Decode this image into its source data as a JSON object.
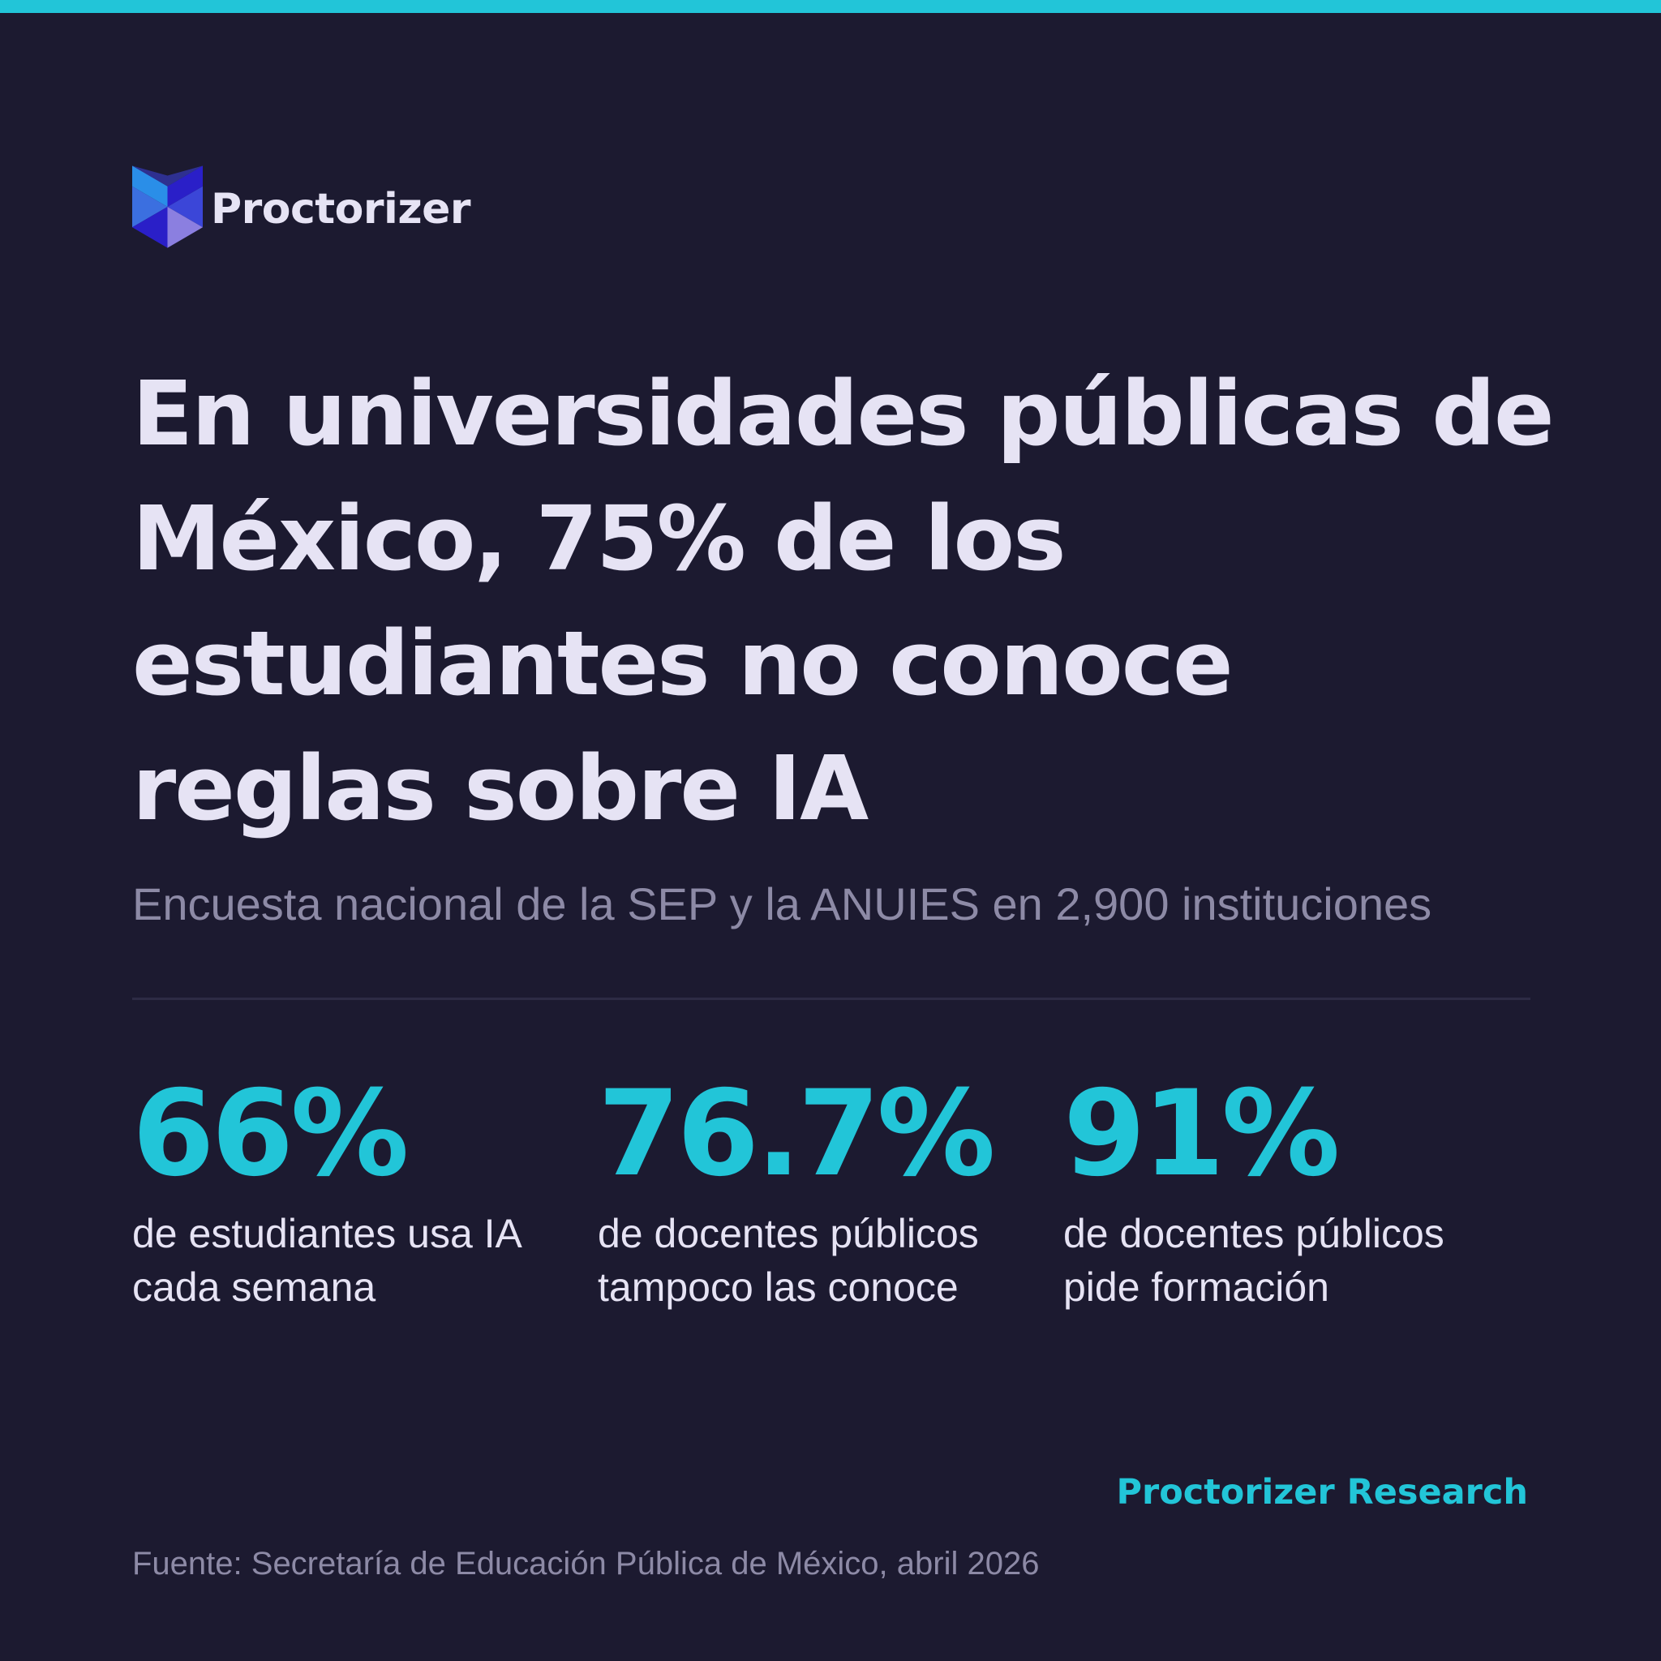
{
  "colors": {
    "background": "#1c1a30",
    "accent": "#22c5d8",
    "headline": "#e6e3f4",
    "muted": "#8d8aa6",
    "divider": "#2d2b45",
    "logo_blue": "#2a8ee8",
    "logo_indigo": "#2a1fc8",
    "logo_violet": "#8b7fe0"
  },
  "brand": {
    "name": "Proctorizer",
    "icon": "proctorizer-cube-logo"
  },
  "headline": "En universidades públicas de México, 75% de los estudiantes no conoce reglas sobre IA",
  "subtitle": "Encuesta nacional de la SEP y la ANUIES en 2,900 instituciones",
  "stats": [
    {
      "value": "66%",
      "label": "de estudiantes usa IA cada semana"
    },
    {
      "value": "76.7%",
      "label": "de docentes públicos tampoco las conoce"
    },
    {
      "value": "91%",
      "label": "de docentes públicos pide formación"
    }
  ],
  "credit": "Proctorizer Research",
  "source": "Fuente: Secretaría de Educación Pública de México, abril 2026"
}
